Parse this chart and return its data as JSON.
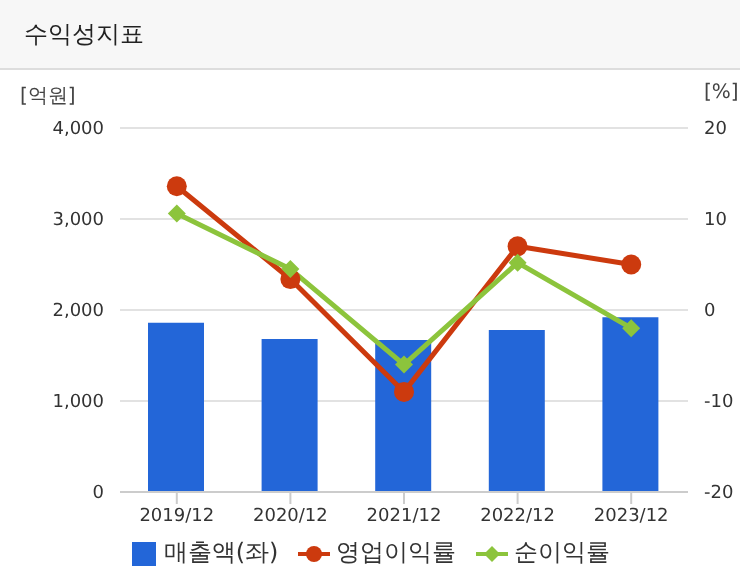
{
  "chart_data": {
    "type": "bar",
    "title": "수익성지표",
    "ylabel": "[억원]",
    "y2label": "[%]",
    "categories": [
      "2019/12",
      "2020/12",
      "2021/12",
      "2022/12",
      "2023/12"
    ],
    "series": [
      {
        "name": "매출액(좌)",
        "color": "#2366d8",
        "values": [
          1860,
          1680,
          1670,
          1780,
          1920
        ]
      },
      {
        "name": "영업이익률",
        "type": "line",
        "axis": "y2",
        "color": "#cc3a0e",
        "marker": "circle",
        "values": [
          13.6,
          3.4,
          -9.0,
          7.0,
          5.0
        ]
      },
      {
        "name": "순이익률",
        "type": "line",
        "axis": "y2",
        "color": "#8cc43c",
        "marker": "diamond",
        "values": [
          10.6,
          4.5,
          -6.0,
          5.2,
          -2.0
        ]
      }
    ],
    "ylim": [
      0,
      4000
    ],
    "yticks": [
      {
        "value": 0,
        "label": "0"
      },
      {
        "value": 1000,
        "label": "1,000"
      },
      {
        "value": 2000,
        "label": "2,000"
      },
      {
        "value": 3000,
        "label": "3,000"
      },
      {
        "value": 4000,
        "label": "4,000"
      }
    ],
    "y2lim": [
      -20,
      20
    ],
    "y2ticks": [
      -20,
      -10,
      0,
      10,
      20
    ],
    "grid": "y",
    "legend": "bottom"
  }
}
